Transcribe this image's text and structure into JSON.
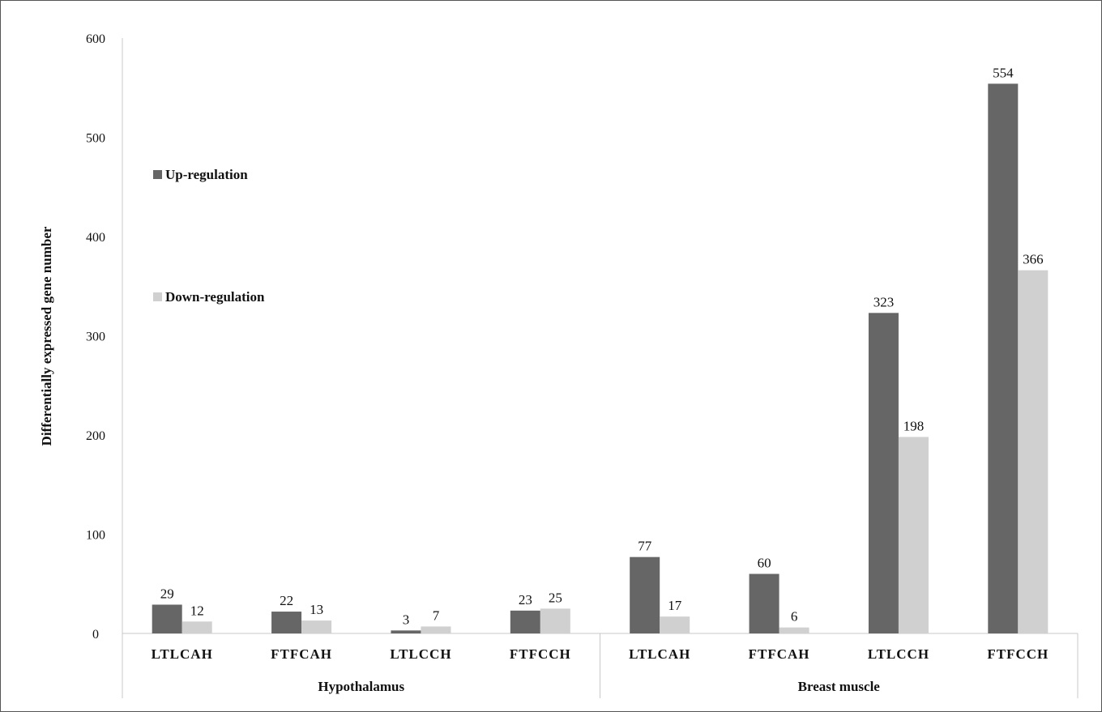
{
  "chart_data": {
    "type": "bar",
    "ylabel": "Differentially expressed gene number",
    "xlabel": "",
    "ylim": [
      0,
      600
    ],
    "yticks": [
      0,
      100,
      200,
      300,
      400,
      500,
      600
    ],
    "groups": [
      {
        "name": "Hypothalamus",
        "categories": [
          "LTLCAH",
          "FTFCAH",
          "LTLCCH",
          "FTFCCH"
        ]
      },
      {
        "name": "Breast muscle",
        "categories": [
          "LTLCAH",
          "FTFCAH",
          "LTLCCH",
          "FTFCCH"
        ]
      }
    ],
    "series": [
      {
        "name": "Up-regulation",
        "color": "#666666",
        "values": [
          29,
          22,
          3,
          23,
          77,
          60,
          323,
          554
        ]
      },
      {
        "name": "Down-regulation",
        "color": "#d0d0d0",
        "values": [
          12,
          13,
          7,
          25,
          17,
          6,
          198,
          366
        ]
      }
    ],
    "legend_position": "left",
    "grid": false
  }
}
